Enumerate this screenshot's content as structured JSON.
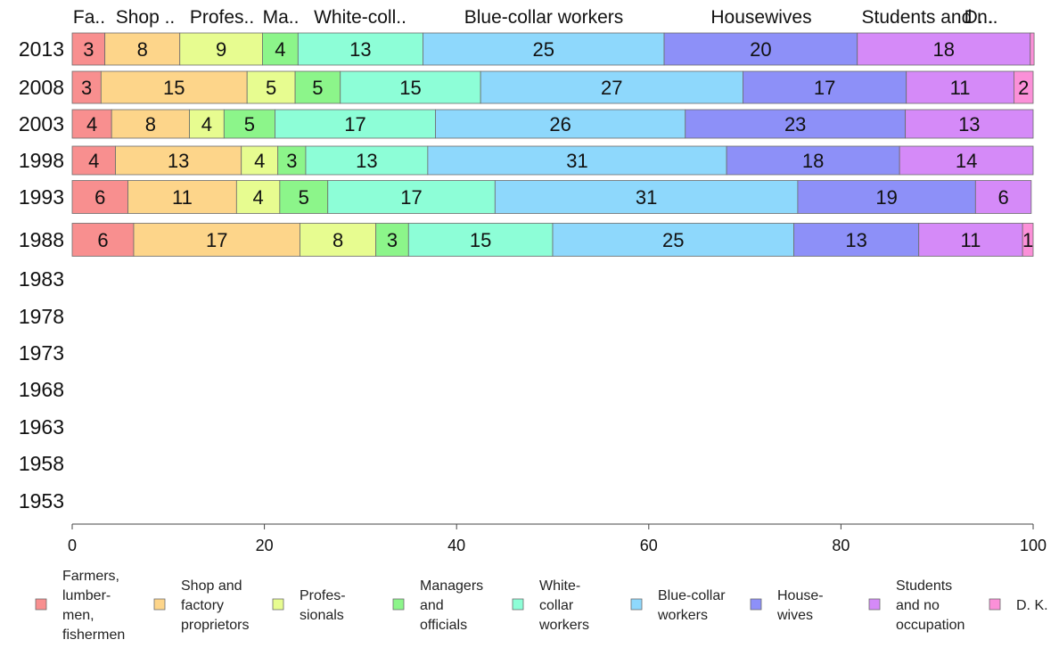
{
  "chart_data": {
    "type": "bar",
    "orientation": "horizontal",
    "stacked": true,
    "categories": [
      "2013",
      "2008",
      "2003",
      "1998",
      "1993",
      "1988",
      "1983",
      "1978",
      "1973",
      "1968",
      "1963",
      "1958",
      "1953"
    ],
    "xlim": [
      0,
      100
    ],
    "x_ticks": [
      0,
      20,
      40,
      60,
      80,
      100
    ],
    "grid": false,
    "legend_position": "bottom",
    "top_labels": [
      "Fa..",
      "Shop ..",
      "Profes..",
      "Ma..",
      "White-coll..",
      "Blue-collar workers",
      "Housewives",
      "Students and n..",
      "D..."
    ],
    "series": [
      {
        "name": "Farmers, lumber-men, fishermen",
        "legend_lines": [
          "Farmers,",
          "lumber-",
          "men,",
          "fishermen"
        ],
        "color": "#f88f8f",
        "values": [
          3.4,
          3.0,
          4.1,
          4.5,
          5.8,
          6.4,
          null,
          null,
          null,
          null,
          null,
          null,
          null
        ],
        "labels": [
          "3",
          "3",
          "4",
          "4",
          "6",
          "6"
        ]
      },
      {
        "name": "Shop and factory proprietors",
        "legend_lines": [
          "Shop and",
          "factory",
          "proprietors"
        ],
        "color": "#fdd58a",
        "values": [
          7.8,
          15.2,
          8.1,
          13.1,
          11.3,
          17.3,
          null,
          null,
          null,
          null,
          null,
          null,
          null
        ],
        "labels": [
          "8",
          "15",
          "8",
          "13",
          "11",
          "17"
        ]
      },
      {
        "name": "Professionals",
        "legend_lines": [
          "Profes-",
          "sionals"
        ],
        "color": "#e7fc90",
        "values": [
          8.6,
          5.0,
          3.6,
          3.8,
          4.5,
          7.9,
          null,
          null,
          null,
          null,
          null,
          null,
          null
        ],
        "labels": [
          "9",
          "5",
          "4",
          "4",
          "4",
          "8"
        ]
      },
      {
        "name": "Managers and officials",
        "legend_lines": [
          "Managers",
          "and",
          "officials"
        ],
        "color": "#8cf58a",
        "values": [
          3.7,
          4.7,
          5.3,
          2.9,
          5.0,
          3.4,
          null,
          null,
          null,
          null,
          null,
          null,
          null
        ],
        "labels": [
          "4",
          "5",
          "5",
          "3",
          "5",
          "3"
        ]
      },
      {
        "name": "White-collar workers",
        "legend_lines": [
          "White-",
          "collar",
          "workers"
        ],
        "color": "#8dfed7",
        "values": [
          13.0,
          14.6,
          16.7,
          12.7,
          17.4,
          15.0,
          null,
          null,
          null,
          null,
          null,
          null,
          null
        ],
        "labels": [
          "13",
          "15",
          "17",
          "13",
          "17",
          "15"
        ]
      },
      {
        "name": "Blue-collar workers",
        "legend_lines": [
          "Blue-collar",
          "workers"
        ],
        "color": "#8ed8fc",
        "values": [
          25.1,
          27.3,
          26.0,
          31.1,
          31.5,
          25.1,
          null,
          null,
          null,
          null,
          null,
          null,
          null
        ],
        "labels": [
          "25",
          "27",
          "26",
          "31",
          "31",
          "25"
        ]
      },
      {
        "name": "Housewives",
        "legend_lines": [
          "House-",
          "wives"
        ],
        "color": "#8d90f8",
        "values": [
          20.1,
          17.0,
          22.9,
          18.0,
          18.5,
          13.0,
          null,
          null,
          null,
          null,
          null,
          null,
          null
        ],
        "labels": [
          "20",
          "17",
          "23",
          "18",
          "19",
          "13"
        ]
      },
      {
        "name": "Students and no occupation",
        "legend_lines": [
          "Students",
          "and no",
          "occupation"
        ],
        "color": "#d58af8",
        "values": [
          18.0,
          11.2,
          13.3,
          13.9,
          5.8,
          10.8,
          null,
          null,
          null,
          null,
          null,
          null,
          null
        ],
        "labels": [
          "18",
          "11",
          "13",
          "14",
          "6",
          "11"
        ]
      },
      {
        "name": "D. K.",
        "legend_lines": [
          "D. K."
        ],
        "color": "#fb90d8",
        "values": [
          0.4,
          2.0,
          0,
          0,
          0,
          1.1,
          null,
          null,
          null,
          null,
          null,
          null,
          null
        ],
        "labels": [
          "",
          "2",
          "",
          "",
          "",
          "1"
        ]
      }
    ]
  }
}
